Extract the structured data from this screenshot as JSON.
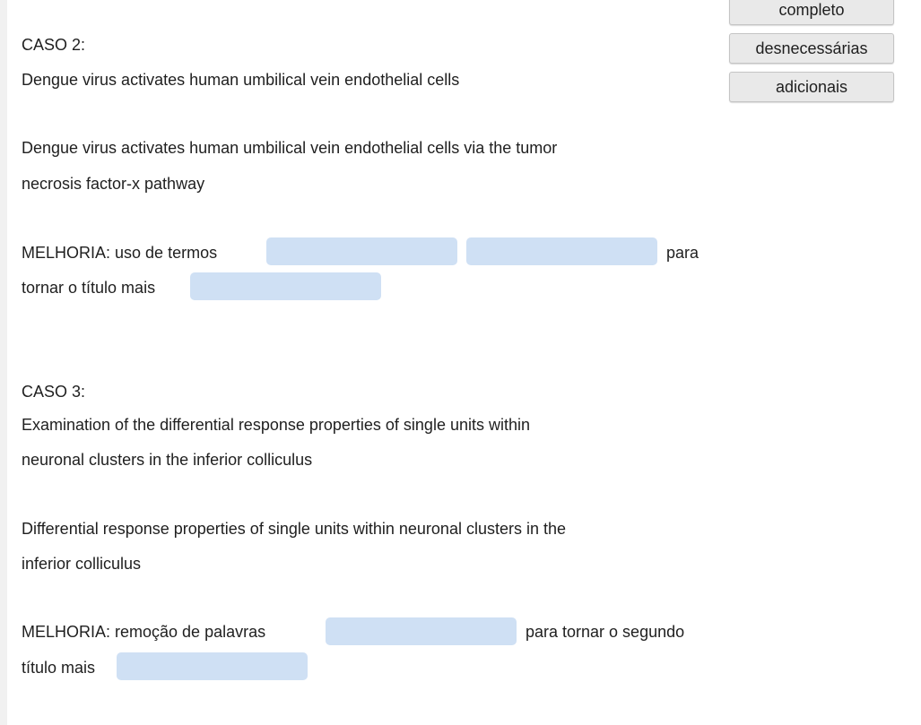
{
  "word_bank": {
    "chips": [
      "completo",
      "desnecessárias",
      "adicionais"
    ]
  },
  "caso2": {
    "heading": "CASO 2:",
    "original_title": "Dengue virus activates human umbilical vein endothelial cells",
    "improved_title_line1": "Dengue virus activates human umbilical vein endothelial cells via the tumor",
    "improved_title_line2": "necrosis factor-x pathway",
    "melhoria_prefix": "MELHORIA: uso de termos",
    "melhoria_mid": "para",
    "melhoria_line2": "tornar o título mais"
  },
  "caso3": {
    "heading": "CASO 3:",
    "original_title_line1": "Examination of the differential response properties of single units within",
    "original_title_line2": "neuronal clusters in the inferior colliculus",
    "improved_title_line1": "Differential response properties of single units within neuronal clusters in the",
    "improved_title_line2": "inferior colliculus",
    "melhoria_prefix": "MELHORIA: remoção de palavras",
    "melhoria_mid": "para tornar o segundo",
    "melhoria_line2": "título mais"
  }
}
